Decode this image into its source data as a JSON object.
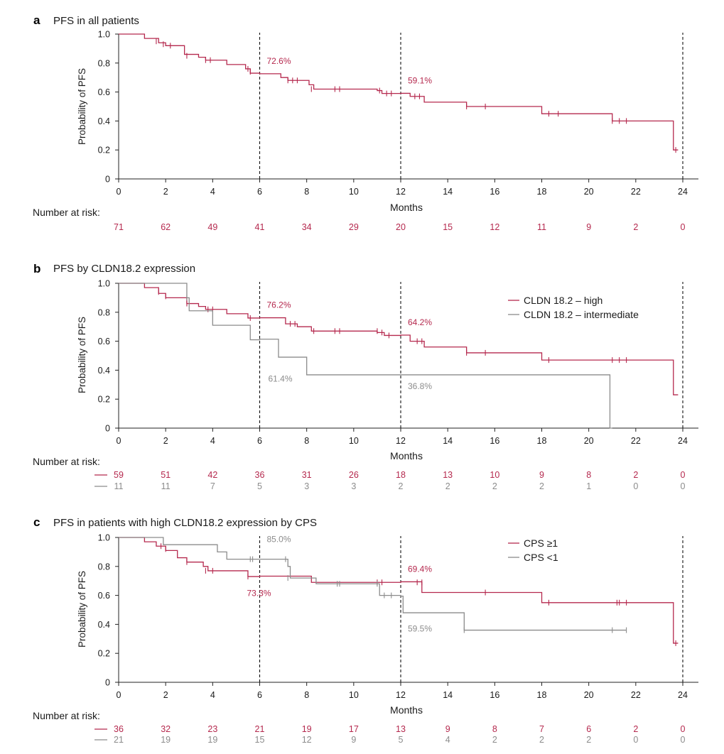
{
  "colors": {
    "high": "#b5294e",
    "gray": "#8c8c8c",
    "axis": "#222222",
    "text": "#1a1a1a"
  },
  "common": {
    "xlabel": "Months",
    "ylabel": "Probability of PFS",
    "risk_label": "Number at risk:"
  },
  "chart_data": [
    {
      "panel": "a",
      "title": "PFS in all patients",
      "type": "line",
      "xlim": [
        0,
        24
      ],
      "ylim": [
        0,
        1.0
      ],
      "xticks": [
        "0",
        "2",
        "4",
        "6",
        "8",
        "10",
        "12",
        "14",
        "16",
        "18",
        "20",
        "22",
        "24"
      ],
      "yticks": [
        "0",
        "0.2",
        "0.4",
        "0.6",
        "0.8",
        "1.0"
      ],
      "vlines": [
        6,
        12,
        24
      ],
      "legend": [],
      "series": [
        {
          "name": "All patients",
          "color": "high",
          "steps": [
            [
              0,
              1.0
            ],
            [
              1.1,
              0.97
            ],
            [
              1.7,
              0.94
            ],
            [
              2.0,
              0.92
            ],
            [
              2.8,
              0.86
            ],
            [
              3.4,
              0.84
            ],
            [
              3.7,
              0.82
            ],
            [
              4.6,
              0.79
            ],
            [
              5.4,
              0.76
            ],
            [
              5.6,
              0.73
            ],
            [
              6.0,
              0.726
            ],
            [
              6.9,
              0.7
            ],
            [
              7.2,
              0.68
            ],
            [
              8.1,
              0.65
            ],
            [
              8.3,
              0.62
            ],
            [
              11.0,
              0.61
            ],
            [
              11.2,
              0.59
            ],
            [
              12.0,
              0.591
            ],
            [
              12.4,
              0.57
            ],
            [
              13.0,
              0.53
            ],
            [
              14.8,
              0.5
            ],
            [
              18.0,
              0.45
            ],
            [
              21.0,
              0.4
            ],
            [
              23.6,
              0.2
            ],
            [
              23.8,
              0.2
            ]
          ],
          "censors": [
            [
              1.6,
              0.95
            ],
            [
              1.9,
              0.93
            ],
            [
              2.2,
              0.92
            ],
            [
              2.9,
              0.85
            ],
            [
              3.7,
              0.82
            ],
            [
              3.9,
              0.82
            ],
            [
              5.5,
              0.76
            ],
            [
              5.6,
              0.74
            ],
            [
              7.2,
              0.68
            ],
            [
              7.4,
              0.68
            ],
            [
              7.6,
              0.68
            ],
            [
              8.2,
              0.62
            ],
            [
              9.2,
              0.62
            ],
            [
              9.4,
              0.62
            ],
            [
              11.1,
              0.61
            ],
            [
              11.4,
              0.59
            ],
            [
              11.6,
              0.59
            ],
            [
              12.6,
              0.57
            ],
            [
              12.8,
              0.57
            ],
            [
              14.8,
              0.5
            ],
            [
              15.6,
              0.5
            ],
            [
              18.3,
              0.45
            ],
            [
              18.7,
              0.45
            ],
            [
              21.0,
              0.4
            ],
            [
              21.3,
              0.4
            ],
            [
              21.6,
              0.4
            ],
            [
              23.7,
              0.2
            ]
          ],
          "labels": [
            {
              "text": "72.6%",
              "x": 6.0,
              "y": 0.726,
              "dx": 10,
              "dy": -14
            },
            {
              "text": "59.1%",
              "x": 12.0,
              "y": 0.591,
              "dx": 10,
              "dy": -14
            }
          ],
          "risk": [
            "71",
            "62",
            "49",
            "41",
            "34",
            "29",
            "20",
            "15",
            "12",
            "11",
            "9",
            "2",
            "0"
          ]
        }
      ]
    },
    {
      "panel": "b",
      "title": "PFS by CLDN18.2 expression",
      "type": "line",
      "xlim": [
        0,
        24
      ],
      "ylim": [
        0,
        1.0
      ],
      "xticks": [
        "0",
        "2",
        "4",
        "6",
        "8",
        "10",
        "12",
        "14",
        "16",
        "18",
        "20",
        "22",
        "24"
      ],
      "yticks": [
        "0",
        "0.2",
        "0.4",
        "0.6",
        "0.8",
        "1.0"
      ],
      "vlines": [
        6,
        12,
        24
      ],
      "legend": [
        {
          "label": "CLDN 18.2 – high",
          "color": "high"
        },
        {
          "label": "CLDN 18.2 – intermediate",
          "color": "gray"
        }
      ],
      "series": [
        {
          "name": "CLDN 18.2 – high",
          "color": "high",
          "steps": [
            [
              0,
              1.0
            ],
            [
              1.1,
              0.97
            ],
            [
              1.7,
              0.93
            ],
            [
              2.0,
              0.9
            ],
            [
              2.9,
              0.86
            ],
            [
              3.4,
              0.84
            ],
            [
              3.7,
              0.82
            ],
            [
              4.6,
              0.79
            ],
            [
              5.5,
              0.76
            ],
            [
              6.0,
              0.762
            ],
            [
              7.1,
              0.72
            ],
            [
              7.6,
              0.7
            ],
            [
              8.2,
              0.67
            ],
            [
              11.0,
              0.66
            ],
            [
              11.3,
              0.64
            ],
            [
              12.0,
              0.642
            ],
            [
              12.4,
              0.6
            ],
            [
              13.0,
              0.56
            ],
            [
              14.8,
              0.52
            ],
            [
              18.0,
              0.47
            ],
            [
              23.6,
              0.23
            ],
            [
              23.8,
              0.23
            ]
          ],
          "censors": [
            [
              1.7,
              0.94
            ],
            [
              2.0,
              0.91
            ],
            [
              2.9,
              0.86
            ],
            [
              3.8,
              0.82
            ],
            [
              4.0,
              0.82
            ],
            [
              5.6,
              0.76
            ],
            [
              7.3,
              0.72
            ],
            [
              7.5,
              0.72
            ],
            [
              8.3,
              0.67
            ],
            [
              9.2,
              0.67
            ],
            [
              9.4,
              0.67
            ],
            [
              11.0,
              0.67
            ],
            [
              11.2,
              0.66
            ],
            [
              11.5,
              0.64
            ],
            [
              12.7,
              0.6
            ],
            [
              12.9,
              0.6
            ],
            [
              14.8,
              0.52
            ],
            [
              15.6,
              0.52
            ],
            [
              18.3,
              0.47
            ],
            [
              21.0,
              0.47
            ],
            [
              21.3,
              0.47
            ],
            [
              21.6,
              0.47
            ]
          ],
          "labels": [
            {
              "text": "76.2%",
              "x": 6.0,
              "y": 0.762,
              "dx": 10,
              "dy": -14
            },
            {
              "text": "64.2%",
              "x": 12.0,
              "y": 0.642,
              "dx": 10,
              "dy": -14
            }
          ],
          "risk": [
            "59",
            "51",
            "42",
            "36",
            "31",
            "26",
            "18",
            "13",
            "10",
            "9",
            "8",
            "2",
            "0"
          ]
        },
        {
          "name": "CLDN 18.2 – intermediate",
          "color": "gray",
          "steps": [
            [
              0,
              1.0
            ],
            [
              2.9,
              0.9
            ],
            [
              3.0,
              0.81
            ],
            [
              4.0,
              0.71
            ],
            [
              5.6,
              0.61
            ],
            [
              6.0,
              0.614
            ],
            [
              6.8,
              0.49
            ],
            [
              8.0,
              0.368
            ],
            [
              12.0,
              0.368
            ],
            [
              20.9,
              0.0
            ],
            [
              21.0,
              0.0
            ]
          ],
          "censors": [
            [
              2.9,
              0.9
            ]
          ],
          "labels": [
            {
              "text": "61.4%",
              "x": 6.0,
              "y": 0.614,
              "dx": 12,
              "dy": 60
            },
            {
              "text": "36.8%",
              "x": 12.0,
              "y": 0.368,
              "dx": 10,
              "dy": 20
            }
          ],
          "risk": [
            "11",
            "11",
            "7",
            "5",
            "3",
            "3",
            "2",
            "2",
            "2",
            "2",
            "1",
            "0",
            "0"
          ]
        }
      ]
    },
    {
      "panel": "c",
      "title": "PFS in patients with high CLDN18.2 expression by CPS",
      "type": "line",
      "xlim": [
        0,
        24
      ],
      "ylim": [
        0,
        1.0
      ],
      "xticks": [
        "0",
        "2",
        "4",
        "6",
        "8",
        "10",
        "12",
        "14",
        "16",
        "18",
        "20",
        "22",
        "24"
      ],
      "yticks": [
        "0",
        "0.2",
        "0.4",
        "0.6",
        "0.8",
        "1.0"
      ],
      "vlines": [
        6,
        12,
        24
      ],
      "legend": [
        {
          "label": "CPS ≥1",
          "color": "high"
        },
        {
          "label": "CPS <1",
          "color": "gray"
        }
      ],
      "series": [
        {
          "name": "CPS ≥1",
          "color": "high",
          "steps": [
            [
              0,
              1.0
            ],
            [
              1.1,
              0.97
            ],
            [
              1.6,
              0.94
            ],
            [
              2.0,
              0.91
            ],
            [
              2.5,
              0.86
            ],
            [
              2.9,
              0.83
            ],
            [
              3.6,
              0.8
            ],
            [
              3.8,
              0.77
            ],
            [
              5.5,
              0.73
            ],
            [
              6.0,
              0.733
            ],
            [
              8.2,
              0.69
            ],
            [
              12.0,
              0.694
            ],
            [
              12.9,
              0.62
            ],
            [
              18.0,
              0.55
            ],
            [
              23.6,
              0.27
            ],
            [
              23.8,
              0.27
            ]
          ],
          "censors": [
            [
              1.8,
              0.94
            ],
            [
              2.0,
              0.92
            ],
            [
              2.9,
              0.83
            ],
            [
              3.7,
              0.77
            ],
            [
              4.0,
              0.77
            ],
            [
              5.5,
              0.73
            ],
            [
              11.0,
              0.69
            ],
            [
              11.2,
              0.69
            ],
            [
              12.7,
              0.69
            ],
            [
              12.9,
              0.69
            ],
            [
              15.6,
              0.62
            ],
            [
              18.3,
              0.55
            ],
            [
              21.2,
              0.55
            ],
            [
              21.3,
              0.55
            ],
            [
              21.6,
              0.55
            ],
            [
              23.7,
              0.27
            ]
          ],
          "labels": [
            {
              "text": "69.4%",
              "x": 12.0,
              "y": 0.694,
              "dx": 10,
              "dy": -14
            },
            {
              "text": "73.3%",
              "x": 6.0,
              "y": 0.733,
              "dx": -18,
              "dy": 28
            }
          ],
          "risk": [
            "36",
            "32",
            "23",
            "21",
            "19",
            "17",
            "13",
            "9",
            "8",
            "7",
            "6",
            "2",
            "0"
          ]
        },
        {
          "name": "CPS <1",
          "color": "gray",
          "steps": [
            [
              0,
              1.0
            ],
            [
              1.9,
              0.95
            ],
            [
              4.2,
              0.9
            ],
            [
              4.6,
              0.85
            ],
            [
              7.2,
              0.8
            ],
            [
              7.3,
              0.72
            ],
            [
              8.4,
              0.68
            ],
            [
              11.1,
              0.6
            ],
            [
              12.0,
              0.595
            ],
            [
              12.1,
              0.48
            ],
            [
              14.7,
              0.36
            ],
            [
              21.6,
              0.36
            ]
          ],
          "censors": [
            [
              5.6,
              0.85
            ],
            [
              5.7,
              0.85
            ],
            [
              7.1,
              0.85
            ],
            [
              7.2,
              0.72
            ],
            [
              9.3,
              0.68
            ],
            [
              9.4,
              0.68
            ],
            [
              11.0,
              0.68
            ],
            [
              11.3,
              0.6
            ],
            [
              11.6,
              0.6
            ],
            [
              14.7,
              0.36
            ],
            [
              21.0,
              0.36
            ],
            [
              21.6,
              0.36
            ]
          ],
          "labels": [
            {
              "text": "85.0%",
              "x": 6.0,
              "y": 0.85,
              "dx": 10,
              "dy": -24
            },
            {
              "text": "59.5%",
              "x": 12.0,
              "y": 0.595,
              "dx": 10,
              "dy": 50
            }
          ],
          "risk": [
            "21",
            "19",
            "19",
            "15",
            "12",
            "9",
            "5",
            "4",
            "2",
            "2",
            "2",
            "0",
            "0"
          ]
        }
      ]
    }
  ]
}
